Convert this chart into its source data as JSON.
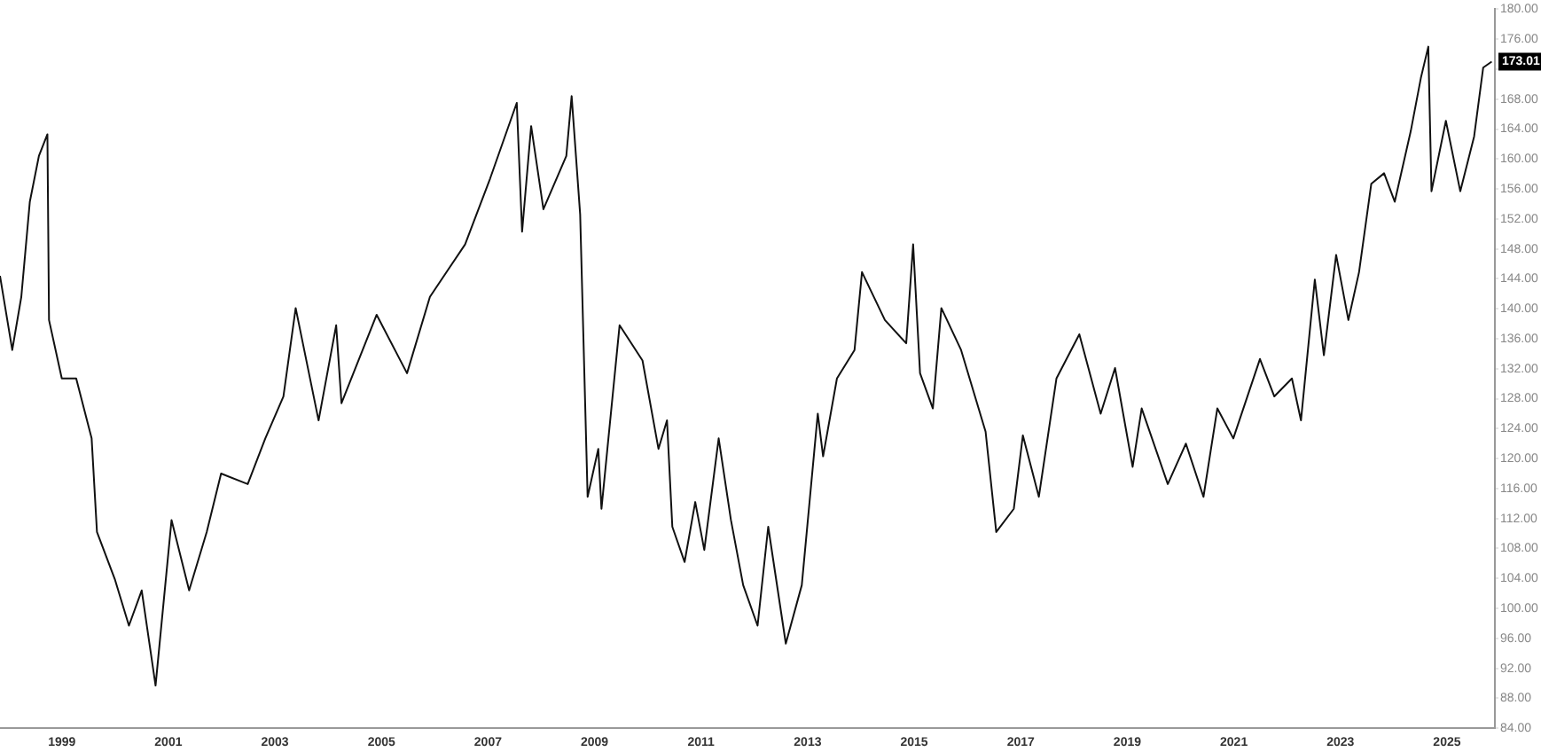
{
  "chart_data": {
    "type": "line",
    "x": [
      1997.84,
      1998.07,
      1998.24,
      1998.4,
      1998.57,
      1998.73,
      1998.76,
      1999.0,
      1999.27,
      1999.56,
      1999.66,
      2000.0,
      2000.26,
      2000.5,
      2000.76,
      2001.06,
      2001.39,
      2001.72,
      2001.99,
      2002.49,
      2002.82,
      2003.16,
      2003.39,
      2003.82,
      2004.15,
      2004.25,
      2004.91,
      2005.48,
      2005.91,
      2006.57,
      2007.04,
      2007.54,
      2007.64,
      2007.81,
      2008.04,
      2008.47,
      2008.57,
      2008.73,
      2008.87,
      2009.07,
      2009.13,
      2009.47,
      2009.9,
      2010.2,
      2010.36,
      2010.46,
      2010.69,
      2010.89,
      2011.06,
      2011.33,
      2011.56,
      2011.79,
      2012.06,
      2012.26,
      2012.59,
      2012.89,
      2013.19,
      2013.29,
      2013.55,
      2013.88,
      2014.02,
      2014.45,
      2014.85,
      2014.98,
      2015.11,
      2015.35,
      2015.51,
      2015.88,
      2016.34,
      2016.54,
      2016.87,
      2017.04,
      2017.34,
      2017.67,
      2018.1,
      2018.5,
      2018.77,
      2019.1,
      2019.27,
      2019.76,
      2020.1,
      2020.43,
      2020.69,
      2020.99,
      2021.49,
      2021.76,
      2022.09,
      2022.26,
      2022.52,
      2022.69,
      2022.92,
      2023.15,
      2023.35,
      2023.58,
      2023.82,
      2024.02,
      2024.32,
      2024.51,
      2024.65,
      2024.71,
      2024.98,
      2025.25,
      2025.51,
      2025.68,
      2025.84
    ],
    "series": [
      {
        "color": "#111111",
        "values": [
          144.4,
          134.5,
          141.6,
          154.3,
          160.4,
          163.3,
          138.5,
          130.7,
          130.7,
          122.7,
          110.2,
          103.8,
          97.7,
          102.4,
          89.7,
          111.8,
          102.4,
          110.2,
          118,
          116.6,
          122.7,
          128.3,
          140.1,
          125.1,
          137.8,
          127.4,
          139.2,
          131.4,
          141.6,
          148.6,
          157.4,
          167.5,
          150.3,
          164.4,
          153.3,
          160.4,
          168.4,
          152.6,
          114.9,
          121.3,
          113.3,
          137.8,
          133.1,
          121.3,
          125.1,
          110.9,
          106.2,
          114.2,
          107.8,
          122.7,
          111.8,
          103.1,
          97.7,
          110.9,
          95.3,
          103.1,
          126,
          120.3,
          130.7,
          134.5,
          144.9,
          138.5,
          135.4,
          148.6,
          131.4,
          126.7,
          140.1,
          134.5,
          123.6,
          110.2,
          113.3,
          123.1,
          114.9,
          130.7,
          136.6,
          126,
          132.1,
          118.9,
          126.7,
          116.6,
          122,
          114.9,
          126.7,
          122.7,
          133.3,
          128.3,
          130.7,
          125.1,
          143.9,
          133.8,
          147.2,
          138.5,
          144.9,
          156.7,
          158.1,
          154.3,
          163.7,
          170.8,
          175,
          155.7,
          165.1,
          155.7,
          163,
          172.2,
          173
        ]
      }
    ],
    "xlim": [
      1997.84,
      2025.9
    ],
    "xticks": [
      1999,
      2001,
      2003,
      2005,
      2007,
      2009,
      2011,
      2013,
      2015,
      2017,
      2019,
      2021,
      2023,
      2025
    ],
    "ylim": [
      84,
      180
    ],
    "yticks": [
      {
        "value": 84,
        "label": "84.00"
      },
      {
        "value": 88,
        "label": "88.00"
      },
      {
        "value": 92,
        "label": "92.00"
      },
      {
        "value": 96,
        "label": "96.00"
      },
      {
        "value": 100,
        "label": "100.00"
      },
      {
        "value": 104,
        "label": "104.00"
      },
      {
        "value": 108,
        "label": "108.00"
      },
      {
        "value": 112,
        "label": "112.00"
      },
      {
        "value": 116,
        "label": "116.00"
      },
      {
        "value": 120,
        "label": "120.00"
      },
      {
        "value": 124,
        "label": "124.00"
      },
      {
        "value": 128,
        "label": "128.00"
      },
      {
        "value": 132,
        "label": "132.00"
      },
      {
        "value": 136,
        "label": "136.00"
      },
      {
        "value": 140,
        "label": "140.00"
      },
      {
        "value": 144,
        "label": "144.00"
      },
      {
        "value": 148,
        "label": "148.00"
      },
      {
        "value": 152,
        "label": "152.00"
      },
      {
        "value": 156,
        "label": "156.00"
      },
      {
        "value": 160,
        "label": "160.00"
      },
      {
        "value": 164,
        "label": "164.00"
      },
      {
        "value": 168,
        "label": "168.00"
      },
      {
        "value": 172,
        "label": null
      },
      {
        "value": 176,
        "label": "176.00"
      },
      {
        "value": 180,
        "label": "180.00"
      }
    ],
    "annotations": [
      {
        "text": "173.01",
        "y": 173.01
      }
    ],
    "grid": false,
    "legend": false,
    "marker": "none",
    "line_style": "solid"
  }
}
